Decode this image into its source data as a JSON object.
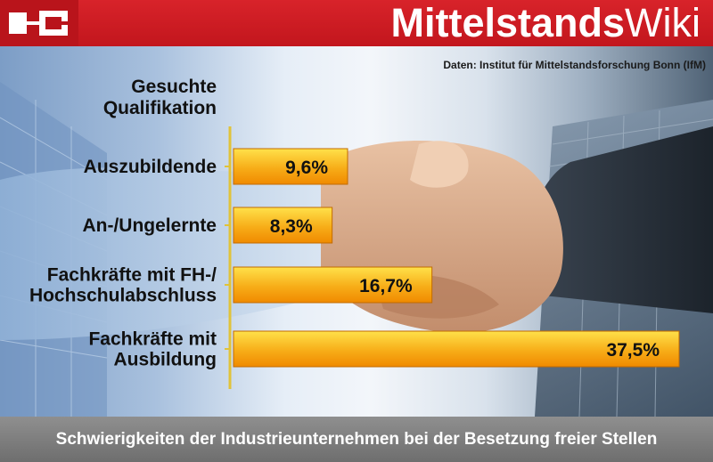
{
  "header": {
    "brand_bold": "Mittelstands",
    "brand_light": "Wiki"
  },
  "source": "Daten: Institut für Mittelstandsforschung Bonn (IfM)",
  "footer": "Schwierigkeiten der Industrieunternehmen bei der Besetzung freier Stellen",
  "colors": {
    "header_red": "#c8181f",
    "bar_top": "#ffe14a",
    "bar_bottom": "#f08a00",
    "axis": "#e0c33a",
    "footer_gray": "#7a7a7a"
  },
  "chart_data": {
    "type": "bar",
    "orientation": "horizontal",
    "category_header": [
      "Gesuchte",
      "Qualifikation"
    ],
    "categories": [
      [
        "Auszubildende"
      ],
      [
        "An-/Ungelernte"
      ],
      [
        "Fachkräfte mit FH-/",
        "Hochschulabschluss"
      ],
      [
        "Fachkräfte mit",
        "Ausbildung"
      ]
    ],
    "values": [
      9.6,
      8.3,
      16.7,
      37.5
    ],
    "value_labels": [
      "9,6%",
      "8,3%",
      "16,7%",
      "37,5%"
    ],
    "xlim": [
      0,
      37.5
    ],
    "grid": false
  }
}
